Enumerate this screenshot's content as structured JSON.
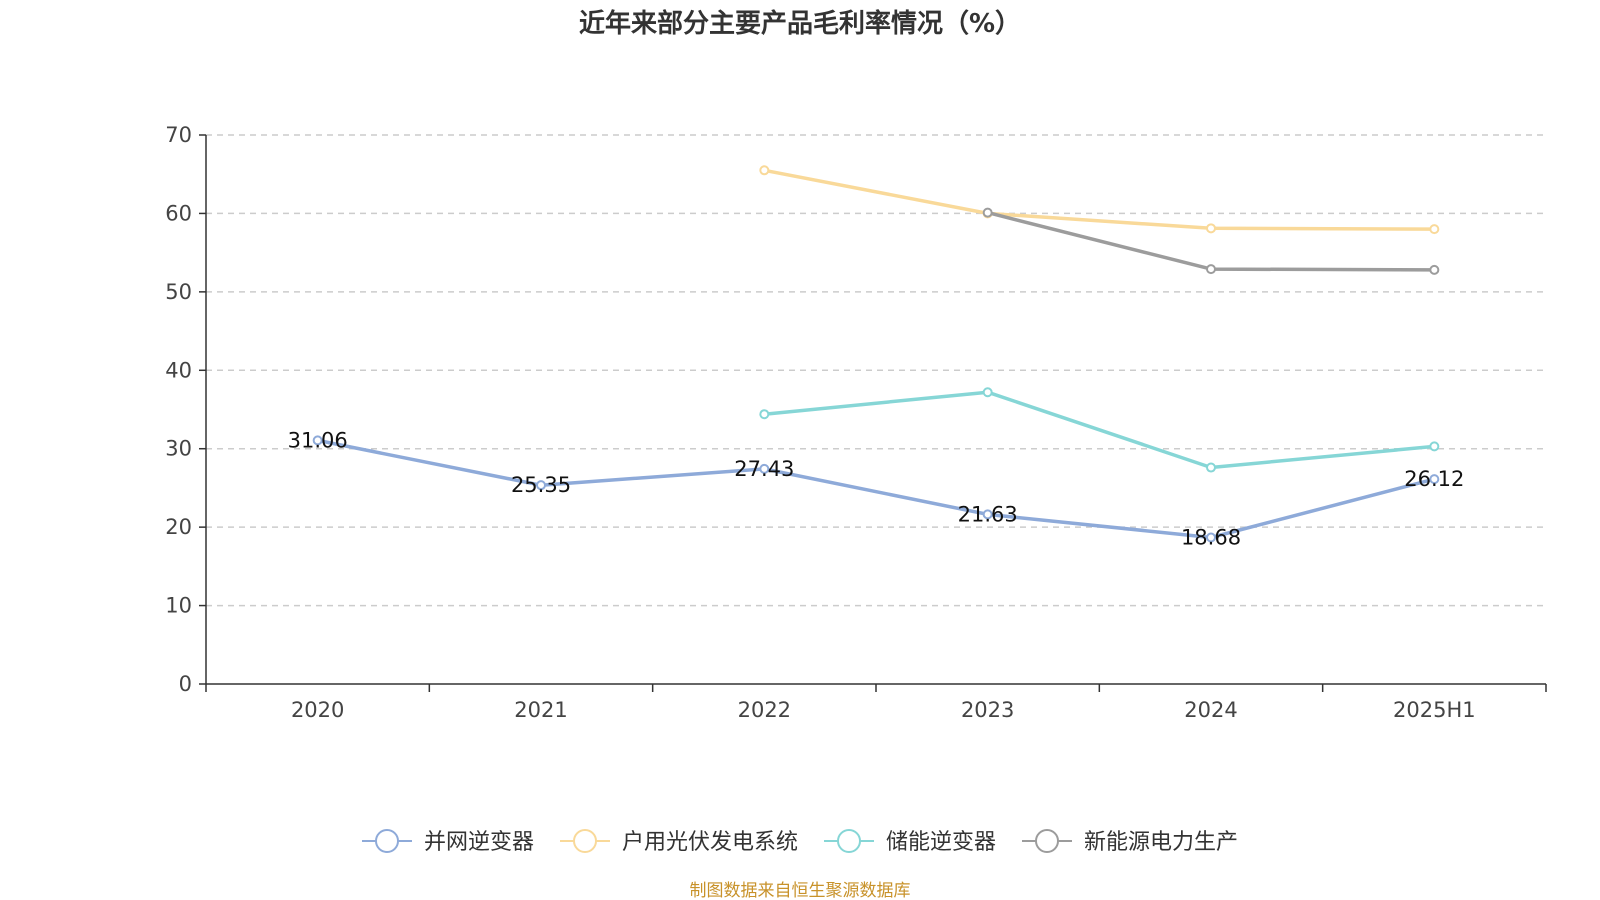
{
  "chart_data": {
    "type": "line",
    "title": "近年来部分主要产品毛利率情况（%）",
    "categories": [
      "2020",
      "2021",
      "2022",
      "2023",
      "2024",
      "2025H1"
    ],
    "ylim": [
      0,
      70
    ],
    "yticks": [
      0,
      10,
      20,
      30,
      40,
      50,
      60,
      70
    ],
    "grid": true,
    "legend_position": "bottom",
    "series": [
      {
        "name": "并网逆变器",
        "color": "#8eaad9",
        "values": [
          31.06,
          25.35,
          27.43,
          21.63,
          18.68,
          26.12
        ],
        "show_labels": true
      },
      {
        "name": "户用光伏发电系统",
        "color": "#f9d999",
        "values": [
          null,
          null,
          65.5,
          60.0,
          58.1,
          58.0
        ],
        "show_labels": false
      },
      {
        "name": "储能逆变器",
        "color": "#86d6d6",
        "values": [
          null,
          null,
          34.4,
          37.2,
          27.6,
          30.3
        ],
        "show_labels": false
      },
      {
        "name": "新能源电力生产",
        "color": "#9c9c9c",
        "values": [
          null,
          null,
          null,
          60.1,
          52.9,
          52.8
        ],
        "show_labels": false
      }
    ],
    "data_labels": [
      "31.06",
      "25.35",
      "27.43",
      "21.63",
      "18.68",
      "26.12"
    ]
  },
  "source_note": "制图数据来自恒生聚源数据库"
}
